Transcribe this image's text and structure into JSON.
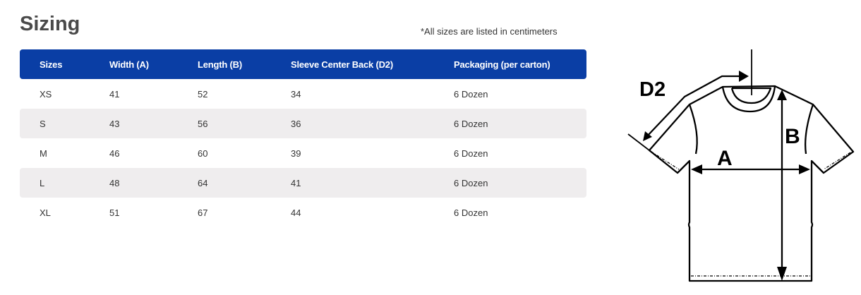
{
  "title": "Sizing",
  "note": "*All sizes are listed in centimeters",
  "table": {
    "headers": [
      "Sizes",
      "Width (A)",
      "Length (B)",
      "Sleeve Center Back (D2)",
      "Packaging (per carton)"
    ],
    "rows": [
      [
        "XS",
        "41",
        "52",
        "34",
        "6 Dozen"
      ],
      [
        "S",
        "43",
        "56",
        "36",
        "6 Dozen"
      ],
      [
        "M",
        "46",
        "60",
        "39",
        "6 Dozen"
      ],
      [
        "L",
        "48",
        "64",
        "41",
        "6 Dozen"
      ],
      [
        "XL",
        "51",
        "67",
        "44",
        "6 Dozen"
      ]
    ]
  },
  "diagram": {
    "label_d2": "D2",
    "label_a": "A",
    "label_b": "B"
  },
  "colors": {
    "header": "#0a3ea5",
    "stripe": "#efedee"
  }
}
